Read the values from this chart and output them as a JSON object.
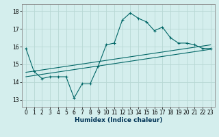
{
  "xlabel": "Humidex (Indice chaleur)",
  "background_color": "#d4eeed",
  "grid_color": "#b8d8d4",
  "line_color": "#006666",
  "xlim": [
    -0.5,
    23.5
  ],
  "ylim": [
    12.6,
    18.4
  ],
  "xticks": [
    0,
    1,
    2,
    3,
    4,
    5,
    6,
    7,
    8,
    9,
    10,
    11,
    12,
    13,
    14,
    15,
    16,
    17,
    18,
    19,
    20,
    21,
    22,
    23
  ],
  "yticks": [
    13,
    14,
    15,
    16,
    17,
    18
  ],
  "main_x": [
    0,
    1,
    2,
    3,
    4,
    5,
    6,
    7,
    8,
    9,
    10,
    11,
    12,
    13,
    14,
    15,
    16,
    17,
    18,
    19,
    20,
    21,
    22,
    23
  ],
  "main_y": [
    15.9,
    14.6,
    14.2,
    14.3,
    14.3,
    14.3,
    13.1,
    13.9,
    13.9,
    14.9,
    16.1,
    16.2,
    17.5,
    17.9,
    17.6,
    17.4,
    16.9,
    17.1,
    16.5,
    16.2,
    16.2,
    16.1,
    15.9,
    15.9
  ],
  "line2_x": [
    0,
    23
  ],
  "line2_y": [
    14.3,
    15.85
  ],
  "line3_x": [
    0,
    23
  ],
  "line3_y": [
    14.55,
    16.1
  ]
}
